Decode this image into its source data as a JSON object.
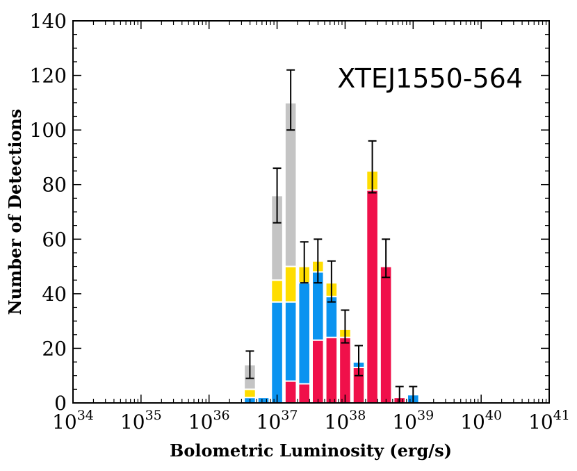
{
  "chart_data": {
    "type": "bar",
    "stacked": true,
    "x_scale": "log",
    "xlim": [
      1e+34,
      1e+41
    ],
    "ylim": [
      0,
      140
    ],
    "xlabel": "Bolometric Luminosity (erg/s)",
    "ylabel": "Number of Detections",
    "annotation": "XTEJ1550-564",
    "x_ticks": [
      {
        "mantissa": "10",
        "exponent": "34"
      },
      {
        "mantissa": "10",
        "exponent": "35"
      },
      {
        "mantissa": "10",
        "exponent": "36"
      },
      {
        "mantissa": "10",
        "exponent": "37"
      },
      {
        "mantissa": "10",
        "exponent": "38"
      },
      {
        "mantissa": "10",
        "exponent": "39"
      },
      {
        "mantissa": "10",
        "exponent": "40"
      },
      {
        "mantissa": "10",
        "exponent": "41"
      }
    ],
    "y_ticks": [
      "0",
      "20",
      "40",
      "60",
      "80",
      "100",
      "120",
      "140"
    ],
    "series_colors": [
      "#f0104a",
      "#0a93f0",
      "#ffdd00",
      "#c4c4c4"
    ],
    "bin_edges_log": [
      36.5,
      36.7,
      36.9,
      37.1,
      37.3,
      37.5,
      37.7,
      37.9,
      38.1,
      38.3,
      38.5,
      38.7,
      38.9,
      39.1,
      39.3
    ],
    "series": [
      {
        "values": [
          0,
          0,
          0,
          8,
          7,
          23,
          24,
          24,
          13,
          78,
          50,
          2,
          0,
          0
        ]
      },
      {
        "values": [
          2,
          2,
          37,
          29,
          37,
          25,
          15,
          0,
          2,
          0,
          0,
          0,
          3,
          0
        ]
      },
      {
        "values": [
          3,
          0,
          8,
          13,
          6,
          4,
          5,
          3,
          0,
          7,
          0,
          0,
          0,
          0
        ]
      },
      {
        "values": [
          9,
          0,
          31,
          60,
          0,
          0,
          0,
          0,
          0,
          0,
          0,
          0,
          0,
          0
        ]
      }
    ],
    "totals": [
      14,
      2,
      76,
      110,
      50,
      52,
      44,
      27,
      15,
      85,
      50,
      2,
      3,
      0
    ],
    "error_bars": [
      {
        "center": 14,
        "low": 9,
        "high": 19
      },
      {
        "center": 76,
        "low": 66,
        "high": 86
      },
      {
        "center": 110,
        "low": 100,
        "high": 122
      },
      {
        "center": 50,
        "low": 44,
        "high": 59
      },
      {
        "center": 48,
        "low": 44,
        "high": 60
      },
      {
        "center": 40,
        "low": 37,
        "high": 52
      },
      {
        "center": 24,
        "low": 22,
        "high": 34
      },
      {
        "center": 14,
        "low": 10,
        "high": 21
      },
      {
        "center": 85,
        "low": 77,
        "high": 96
      },
      {
        "center": 50,
        "low": 46,
        "high": 60
      },
      {
        "center": 2,
        "low": 0,
        "high": 6
      },
      {
        "center": 2,
        "low": 0,
        "high": 6
      }
    ],
    "error_bar_bins": [
      0,
      2,
      3,
      4,
      5,
      6,
      7,
      8,
      9,
      10,
      11,
      12
    ]
  }
}
